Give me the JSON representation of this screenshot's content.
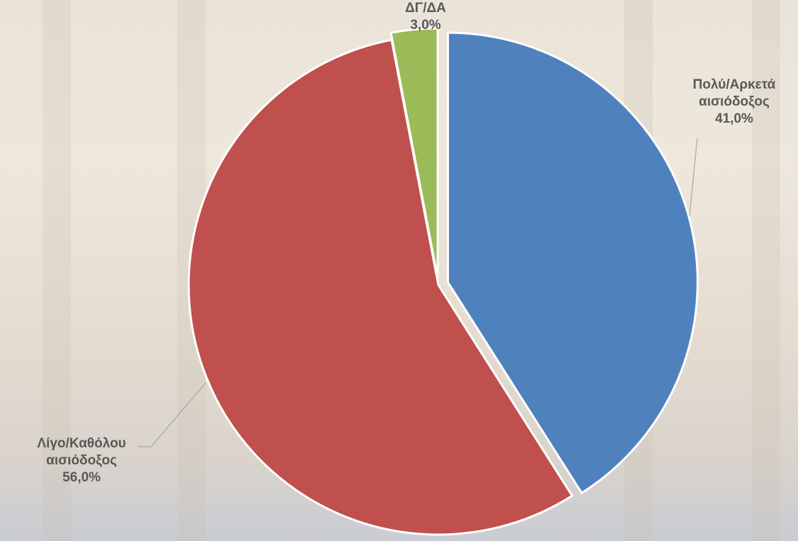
{
  "chart_data": {
    "type": "pie",
    "categories": [
      "Πολύ/Αρκετά αισιόδοξος",
      "Λίγο/Καθόλου αισιόδοξος",
      "ΔΓ/ΔΑ"
    ],
    "values": [
      41,
      56,
      3
    ],
    "value_labels": [
      "41,0%",
      "56,0%",
      "3,0%"
    ],
    "colors": [
      "#4f81bd",
      "#c0504d",
      "#9bbb59"
    ]
  }
}
